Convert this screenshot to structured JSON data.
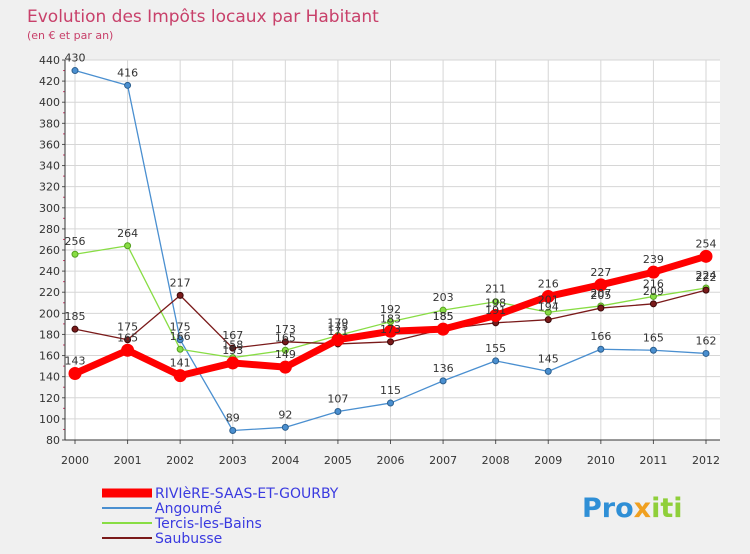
{
  "chart_data": {
    "type": "line",
    "title": "Evolution des Impôts locaux par Habitant",
    "subtitle": "(en € et par an)",
    "x": [
      "2000",
      "2001",
      "2002",
      "2003",
      "2004",
      "2005",
      "2006",
      "2007",
      "2008",
      "2009",
      "2010",
      "2011",
      "2012"
    ],
    "ylim": [
      80,
      440
    ],
    "ytick_step": 20,
    "grid": true,
    "legend_position": "bottom-left",
    "series": [
      {
        "name": "RIVIèRE-SAAS-ET-GOURBY",
        "color": "#ff0000",
        "values": [
          143,
          165,
          141,
          153,
          149,
          175,
          183,
          185,
          198,
          216,
          227,
          239,
          254
        ]
      },
      {
        "name": "Angoumé",
        "color": "#4a8fd0",
        "values": [
          430,
          416,
          175,
          89,
          92,
          107,
          115,
          136,
          155,
          145,
          166,
          165,
          162
        ]
      },
      {
        "name": "Tercis-les-Bains",
        "color": "#88dd44",
        "values": [
          256,
          264,
          166,
          158,
          165,
          179,
          192,
          203,
          211,
          201,
          207,
          216,
          224
        ]
      },
      {
        "name": "Saubusse",
        "color": "#7a1a1a",
        "values": [
          185,
          175,
          217,
          167,
          173,
          171,
          173,
          185,
          191,
          194,
          205,
          209,
          222
        ]
      }
    ]
  },
  "logo": {
    "text": "Proxiti"
  }
}
